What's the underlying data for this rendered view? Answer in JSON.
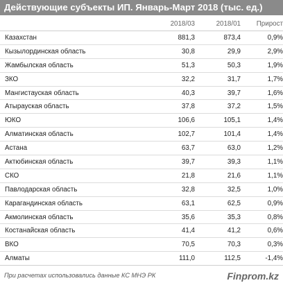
{
  "title": "Действующие субъекты ИП. Январь-Март 2018 (тыс. ед.)",
  "headers": {
    "name": "",
    "col_a": "2018/03",
    "col_b": "2018/01",
    "growth": "Прирост"
  },
  "rows": [
    {
      "name": "Казахстан",
      "a": "881,3",
      "b": "873,4",
      "g": "0,9%"
    },
    {
      "name": "Кызылординская область",
      "a": "30,8",
      "b": "29,9",
      "g": "2,9%"
    },
    {
      "name": "Жамбылская область",
      "a": "51,3",
      "b": "50,3",
      "g": "1,9%"
    },
    {
      "name": "ЗКО",
      "a": "32,2",
      "b": "31,7",
      "g": "1,7%"
    },
    {
      "name": "Мангистауская область",
      "a": "40,3",
      "b": "39,7",
      "g": "1,6%"
    },
    {
      "name": "Атырауская область",
      "a": "37,8",
      "b": "37,2",
      "g": "1,5%"
    },
    {
      "name": "ЮКО",
      "a": "106,6",
      "b": "105,1",
      "g": "1,4%"
    },
    {
      "name": "Алматинская область",
      "a": "102,7",
      "b": "101,4",
      "g": "1,4%"
    },
    {
      "name": "Астана",
      "a": "63,7",
      "b": "63,0",
      "g": "1,2%"
    },
    {
      "name": "Актюбинская область",
      "a": "39,7",
      "b": "39,3",
      "g": "1,1%"
    },
    {
      "name": "СКО",
      "a": "21,8",
      "b": "21,6",
      "g": "1,1%"
    },
    {
      "name": "Павлодарская область",
      "a": "32,8",
      "b": "32,5",
      "g": "1,0%"
    },
    {
      "name": "Карагандинская область",
      "a": "63,1",
      "b": "62,5",
      "g": "0,9%"
    },
    {
      "name": "Акмолинская область",
      "a": "35,6",
      "b": "35,3",
      "g": "0,8%"
    },
    {
      "name": "Костанайская область",
      "a": "41,4",
      "b": "41,2",
      "g": "0,6%"
    },
    {
      "name": "ВКО",
      "a": "70,5",
      "b": "70,3",
      "g": "0,3%"
    },
    {
      "name": "Алматы",
      "a": "111,0",
      "b": "112,5",
      "g": "-1,4%"
    }
  ],
  "footer": {
    "source": "При расчетах использовались данные КС МНЭ РК",
    "brand": "Finprom.kz"
  }
}
